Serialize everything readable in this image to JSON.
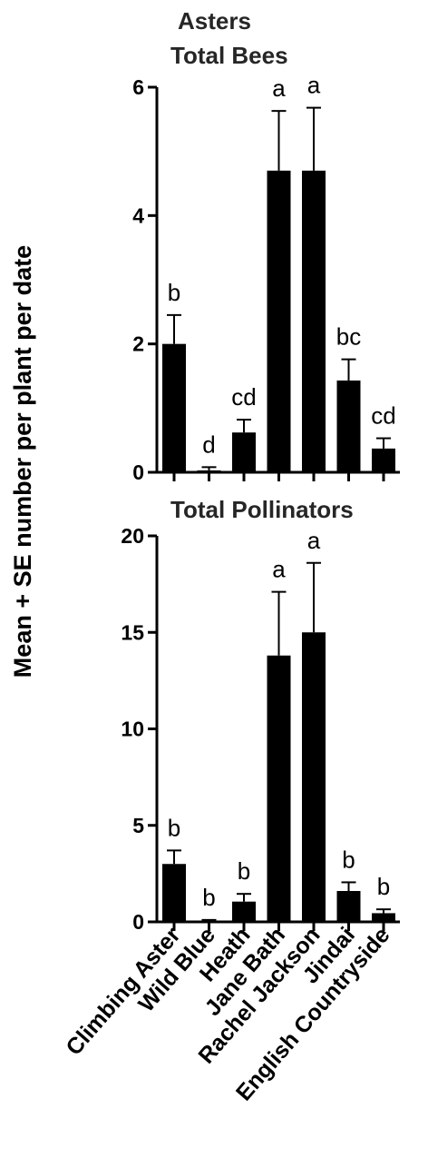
{
  "figure": {
    "group_title": "Asters",
    "ylabel": "Mean + SE number per plant per date",
    "categories": [
      "Climbing Aster",
      "Wild Blue",
      "Heath",
      "Jane Bath",
      "Rachel Jackson",
      "Jindai",
      "English Countryside"
    ]
  },
  "chart_data": [
    {
      "type": "bar",
      "title": "Total Bees",
      "categories": [
        "Climbing Aster",
        "Wild Blue",
        "Heath",
        "Jane Bath",
        "Rachel Jackson",
        "Jindai",
        "English Countryside"
      ],
      "values": [
        2.0,
        0.03,
        0.62,
        4.7,
        4.7,
        1.43,
        0.37
      ],
      "errors": [
        0.45,
        0.05,
        0.2,
        0.93,
        0.98,
        0.33,
        0.16
      ],
      "significance": [
        "b",
        "d",
        "cd",
        "a",
        "a",
        "bc",
        "cd"
      ],
      "ylim": [
        0,
        6
      ],
      "yticks": [
        "0",
        "2",
        "4",
        "6"
      ],
      "xlabel": "",
      "ylabel": "Mean + SE number per plant per date",
      "grid": false,
      "bar_color": "#000000"
    },
    {
      "type": "bar",
      "title": "Total Pollinators",
      "categories": [
        "Climbing Aster",
        "Wild Blue",
        "Heath",
        "Jane Bath",
        "Rachel Jackson",
        "Jindai",
        "English Countryside"
      ],
      "values": [
        3.0,
        0.05,
        1.05,
        13.8,
        15.0,
        1.6,
        0.45
      ],
      "errors": [
        0.7,
        0.05,
        0.4,
        3.3,
        3.6,
        0.45,
        0.2
      ],
      "significance": [
        "b",
        "b",
        "b",
        "a",
        "a",
        "b",
        "b"
      ],
      "ylim": [
        0,
        20
      ],
      "yticks": [
        "0",
        "5",
        "10",
        "15",
        "20"
      ],
      "xlabel": "",
      "ylabel": "Mean + SE number per plant per date",
      "grid": false,
      "bar_color": "#000000"
    }
  ]
}
